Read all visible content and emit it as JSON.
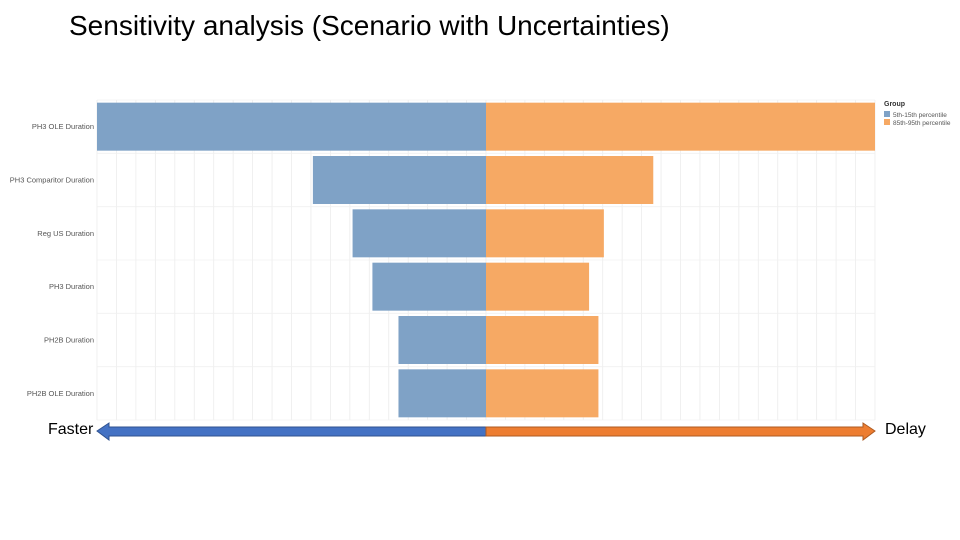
{
  "title": "Sensitivity analysis (Scenario with Uncertainties)",
  "direction_labels": {
    "left": "Faster",
    "right": "Delay"
  },
  "colors": {
    "low": "#7fa2c6",
    "high": "#f6a964",
    "arrow_left": "#4472c4",
    "arrow_right": "#ed7d31"
  },
  "chart_data": {
    "type": "bar",
    "orientation": "horizontal-tornado",
    "legend_title": "Group",
    "legend_position": "top-right",
    "grid": true,
    "categories": [
      "PH3 OLE Duration",
      "PH3 Comparitor Duration",
      "Reg US Duration",
      "PH3 Duration",
      "PH2B Duration",
      "PH2B OLE Duration"
    ],
    "series": [
      {
        "name": "5th-15th percentile",
        "values": [
          -100,
          -44.5,
          -34.3,
          -29.2,
          -22.5,
          -22.5
        ]
      },
      {
        "name": "85th-95th percentile",
        "values": [
          100,
          43,
          30.3,
          26.5,
          28.9,
          28.9
        ]
      }
    ],
    "xlim": [
      -100,
      100
    ]
  }
}
